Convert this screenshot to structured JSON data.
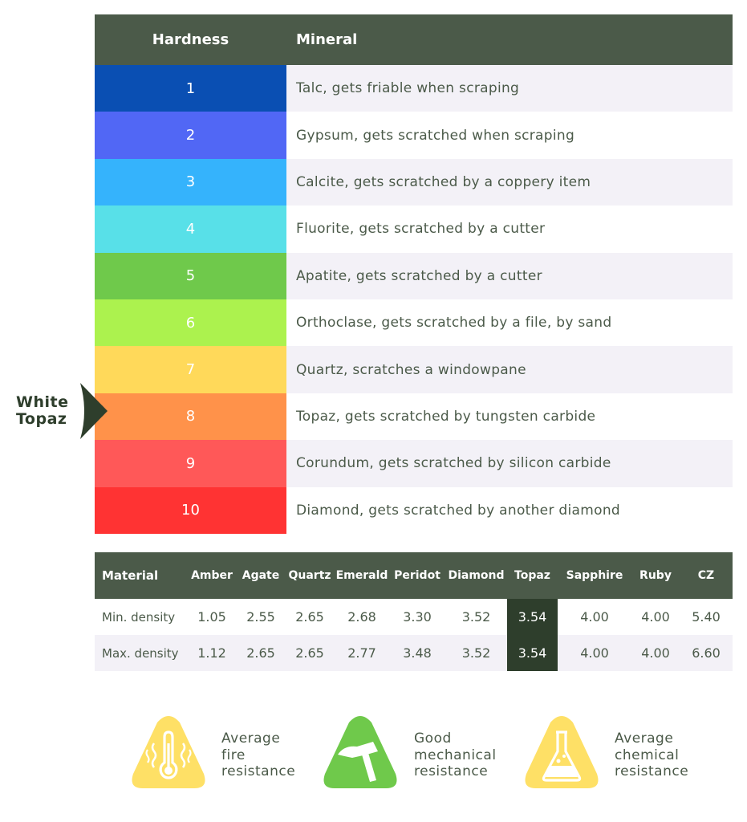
{
  "hardness_table": {
    "header": {
      "hardness": "Hardness",
      "mineral": "Mineral"
    },
    "rows": [
      {
        "hardness": "1",
        "mineral": "Talc, gets friable when scraping",
        "color": "#0a4fb3"
      },
      {
        "hardness": "2",
        "mineral": "Gypsum, gets scratched when scraping",
        "color": "#5167f5"
      },
      {
        "hardness": "3",
        "mineral": "Calcite, gets scratched by a coppery item",
        "color": "#35b3fc"
      },
      {
        "hardness": "4",
        "mineral": "Fluorite, gets scratched by a cutter",
        "color": "#58e0e8"
      },
      {
        "hardness": "5",
        "mineral": "Apatite, gets scratched by a cutter",
        "color": "#6fc94b"
      },
      {
        "hardness": "6",
        "mineral": "Orthoclase, gets scratched by a file, by sand",
        "color": "#acf24e"
      },
      {
        "hardness": "7",
        "mineral": "Quartz, scratches a windowpane",
        "color": "#ffd95a"
      },
      {
        "hardness": "8",
        "mineral": "Topaz, gets scratched by tungsten carbide",
        "color": "#ff924a"
      },
      {
        "hardness": "9",
        "mineral": "Corundum, gets scratched by silicon carbide",
        "color": "#ff5858"
      },
      {
        "hardness": "10",
        "mineral": "Diamond, gets scratched by another diamond",
        "color": "#ff3333"
      }
    ]
  },
  "pointer": {
    "line1": "White",
    "line2": "Topaz",
    "points_to_hardness": "8",
    "color": "#2e3e2c"
  },
  "density_table": {
    "columns": [
      "Material",
      "Amber",
      "Agate",
      "Quartz",
      "Emerald",
      "Peridot",
      "Diamond",
      "Topaz",
      "Sapphire",
      "Ruby",
      "CZ"
    ],
    "rows": [
      {
        "label": "Min. density",
        "values": [
          "1.05",
          "2.55",
          "2.65",
          "2.68",
          "3.30",
          "3.52",
          "3.54",
          "4.00",
          "4.00",
          "5.40"
        ]
      },
      {
        "label": "Max. density",
        "values": [
          "1.12",
          "2.65",
          "2.65",
          "2.77",
          "3.48",
          "3.52",
          "3.54",
          "4.00",
          "4.00",
          "6.60"
        ]
      }
    ],
    "highlight_column": "Topaz"
  },
  "badges": [
    {
      "icon": "thermometer-icon",
      "color": "#fee066",
      "line1": "Average",
      "line2": "fire",
      "line3": "resistance"
    },
    {
      "icon": "hammer-icon",
      "color": "#6fc94b",
      "line1": "Good",
      "line2": "mechanical",
      "line3": "resistance"
    },
    {
      "icon": "flask-icon",
      "color": "#fee066",
      "line1": "Average",
      "line2": "chemical",
      "line3": "resistance"
    }
  ]
}
